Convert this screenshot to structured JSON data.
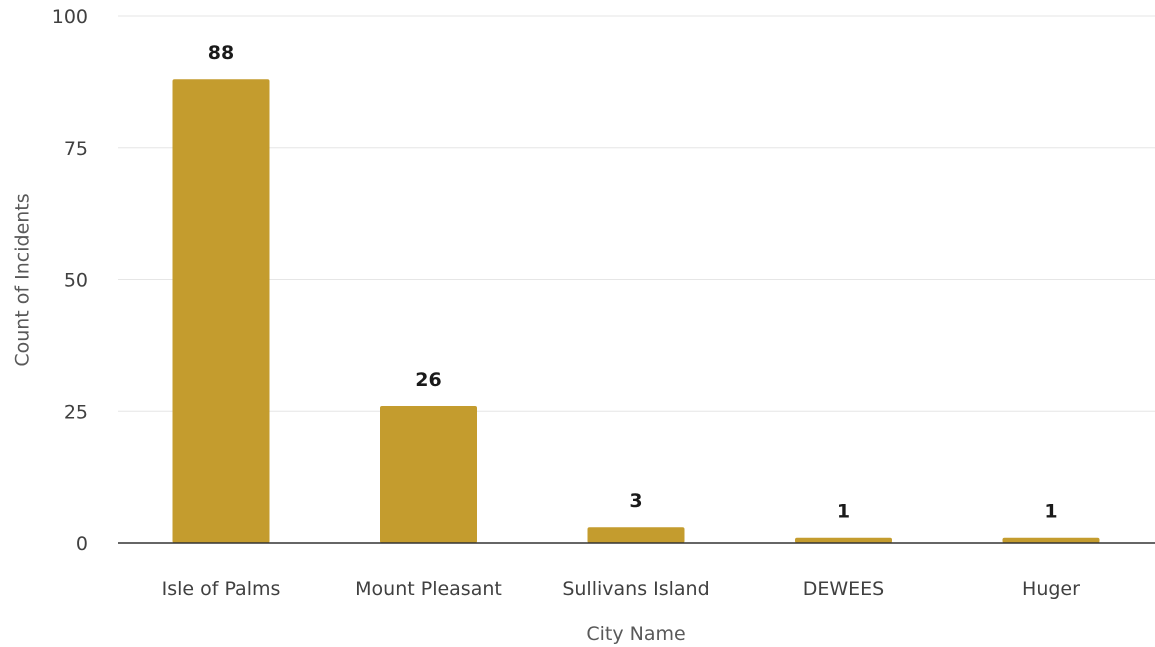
{
  "chart_data": {
    "type": "bar",
    "categories": [
      "Isle of Palms",
      "Mount Pleasant",
      "Sullivans Island",
      "DEWEES",
      "Huger"
    ],
    "values": [
      88,
      26,
      3,
      1,
      1
    ],
    "data_labels": [
      "88",
      "26",
      "3",
      "1",
      "1"
    ],
    "title": "",
    "xlabel": "City Name",
    "ylabel": "Count of Incidents",
    "ylim": [
      0,
      100
    ],
    "yticks": [
      0,
      25,
      50,
      75,
      100
    ],
    "ytick_labels": [
      "0",
      "25",
      "50",
      "75",
      "100"
    ],
    "grid": true,
    "legend": "none",
    "bar_color": "#C49C2E"
  }
}
